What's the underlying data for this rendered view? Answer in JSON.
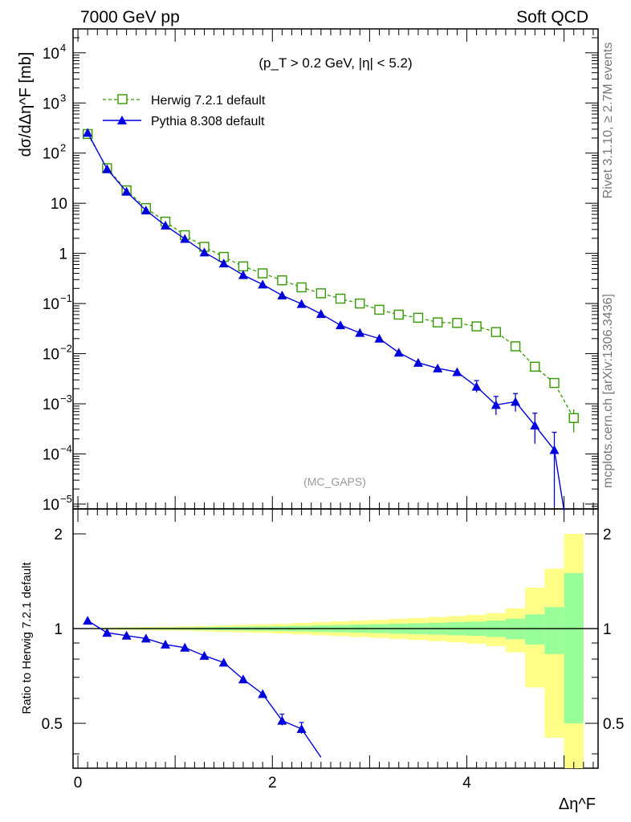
{
  "header": {
    "left": "7000 GeV pp",
    "right": "Soft QCD"
  },
  "side_labels": {
    "rivet": "Rivet 3.1.10, ≥ 2.7M events",
    "mcplots": "mcplots.cern.ch [arXiv:1306.3436]"
  },
  "main_panel": {
    "cut_label": "(p_T > 0.2 GeV, |η| < 5.2)",
    "analysis_label": "(MC_GAPS)",
    "ylabel": "dσ/dΔη^F [mb]"
  },
  "ratio_panel": {
    "ylabel": "Ratio to Herwig 7.2.1 default"
  },
  "xlabel": "Δη^F",
  "chart_data": [
    {
      "type": "line",
      "panel": "main",
      "yscale": "log",
      "xlim": [
        -0.05,
        5.35
      ],
      "ylim": [
        8e-06,
        30000
      ],
      "legend_position": "top-left",
      "x": [
        0.1,
        0.3,
        0.5,
        0.7,
        0.9,
        1.1,
        1.3,
        1.5,
        1.7,
        1.9,
        2.1,
        2.3,
        2.5,
        2.7,
        2.9,
        3.1,
        3.3,
        3.5,
        3.7,
        3.9,
        4.1,
        4.3,
        4.5,
        4.7,
        4.9,
        5.1
      ],
      "series": [
        {
          "name": "Herwig 7.2.1 default",
          "color": "#339900",
          "marker": "open-square",
          "linestyle": "dashed",
          "values": [
            240,
            50,
            18,
            8,
            4.3,
            2.3,
            1.35,
            0.85,
            0.55,
            0.4,
            0.29,
            0.21,
            0.16,
            0.125,
            0.1,
            0.075,
            0.06,
            0.052,
            0.042,
            0.041,
            0.035,
            0.027,
            0.014,
            0.0055,
            0.0026,
            0.00052
          ]
        },
        {
          "name": "Pythia 8.308 default",
          "color": "#0000dd",
          "marker": "filled-triangle",
          "linestyle": "solid",
          "values": [
            255,
            48,
            17,
            7.2,
            3.6,
            1.95,
            1.05,
            0.63,
            0.37,
            0.24,
            0.145,
            0.098,
            0.062,
            0.037,
            0.026,
            0.02,
            0.0105,
            0.0066,
            0.0051,
            0.0043,
            0.0022,
            0.00095,
            0.0011,
            0.00037,
            0.00012,
            null
          ]
        }
      ]
    },
    {
      "type": "line",
      "panel": "ratio",
      "yscale": "log",
      "xlim": [
        -0.05,
        5.35
      ],
      "ylim": [
        0.36,
        2.4
      ],
      "ticks_labeled": [
        "0.5",
        "1",
        "2"
      ],
      "reference_line": 1,
      "x": [
        0.1,
        0.3,
        0.5,
        0.7,
        0.9,
        1.1,
        1.3,
        1.5,
        1.7,
        1.9,
        2.1,
        2.3,
        2.5
      ],
      "series": [
        {
          "name": "Pythia 8.308 default",
          "color": "#0000dd",
          "values": [
            1.06,
            0.97,
            0.95,
            0.93,
            0.89,
            0.87,
            0.82,
            0.78,
            0.69,
            0.62,
            0.51,
            0.48,
            0.39
          ]
        }
      ],
      "uncertainty_band": {
        "bin_edges": [
          0.2,
          0.4,
          0.6,
          0.8,
          1.0,
          1.2,
          1.4,
          1.6,
          1.8,
          2.0,
          2.2,
          2.4,
          2.6,
          2.8,
          3.0,
          3.2,
          3.4,
          3.6,
          3.8,
          4.0,
          4.2,
          4.4,
          4.6,
          4.8,
          5.0,
          5.2
        ],
        "inner_color": "#99ff99",
        "outer_color": "#ffff88",
        "inner_rel": [
          0.004,
          0.005,
          0.006,
          0.007,
          0.008,
          0.01,
          0.012,
          0.014,
          0.016,
          0.018,
          0.021,
          0.024,
          0.027,
          0.03,
          0.033,
          0.037,
          0.04,
          0.044,
          0.048,
          0.052,
          0.06,
          0.075,
          0.11,
          0.17,
          0.5
        ],
        "outer_rel": [
          0.008,
          0.01,
          0.012,
          0.014,
          0.016,
          0.02,
          0.024,
          0.028,
          0.032,
          0.036,
          0.042,
          0.048,
          0.054,
          0.06,
          0.066,
          0.074,
          0.08,
          0.088,
          0.096,
          0.105,
          0.12,
          0.16,
          0.35,
          0.55,
          1.0
        ]
      }
    }
  ]
}
